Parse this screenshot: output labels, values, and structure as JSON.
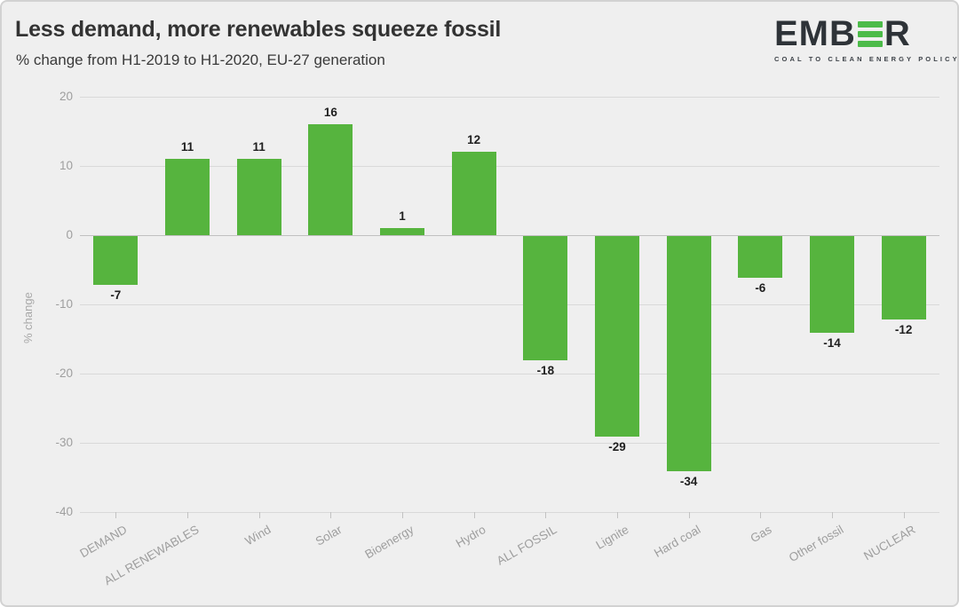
{
  "header": {
    "title": "Less demand, more renewables squeeze fossil",
    "subtitle": "% change from H1-2019 to H1-2020, EU-27 generation"
  },
  "logo": {
    "text_left": "EMB",
    "text_right": "R",
    "tagline": "COAL TO CLEAN ENERGY POLICY",
    "green": "#4cbb49",
    "dark": "#2e3338"
  },
  "colors": {
    "background": "#efefef",
    "bar_green": "#56b43e",
    "gridline": "#d9d9d9",
    "zero_line": "#c0c0c0",
    "axis_text": "#9e9e9e",
    "value_text": "#1f1f1f"
  },
  "chart_data": {
    "type": "bar",
    "title": "Less demand, more renewables squeeze fossil",
    "subtitle": "% change from H1-2019 to H1-2020, EU-27 generation",
    "categories": [
      "DEMAND",
      "ALL RENEWABLES",
      "Wind",
      "Solar",
      "Bioenergy",
      "Hydro",
      "ALL FOSSIL",
      "Lignite",
      "Hard coal",
      "Gas",
      "Other fossil",
      "NUCLEAR"
    ],
    "values": [
      -7,
      11,
      11,
      16,
      1,
      12,
      -18,
      -29,
      -34,
      -6,
      -14,
      -12
    ],
    "xlabel": "",
    "ylabel": "% change",
    "ylim": [
      -40,
      20
    ],
    "yticks": [
      20,
      10,
      0,
      -10,
      -20,
      -30,
      -40
    ],
    "grid": true,
    "legend": "none",
    "bar_color": "#56b43e"
  }
}
